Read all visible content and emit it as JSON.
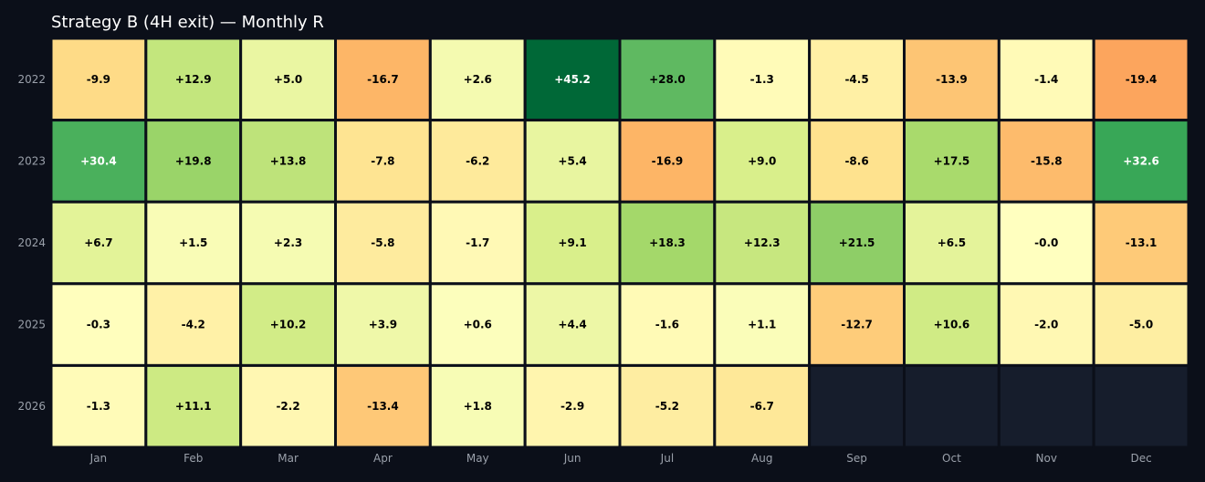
{
  "chart_data": {
    "type": "heatmap",
    "title": "Strategy B (4H exit) — Monthly R",
    "xlabel": "",
    "ylabel": "",
    "columns": [
      "Jan",
      "Feb",
      "Mar",
      "Apr",
      "May",
      "Jun",
      "Jul",
      "Aug",
      "Sep",
      "Oct",
      "Nov",
      "Dec"
    ],
    "rows": [
      "2022",
      "2023",
      "2024",
      "2025",
      "2026"
    ],
    "values": [
      [
        -9.9,
        12.9,
        5.0,
        -16.7,
        2.6,
        45.2,
        28.0,
        -1.3,
        -4.5,
        -13.9,
        -1.4,
        -19.4
      ],
      [
        30.4,
        19.8,
        13.8,
        -7.8,
        -6.2,
        5.4,
        -16.9,
        9.0,
        -8.6,
        17.5,
        -15.8,
        32.6
      ],
      [
        6.7,
        1.5,
        2.3,
        -5.8,
        -1.7,
        9.1,
        18.3,
        12.3,
        21.5,
        6.5,
        -0.0,
        -13.1
      ],
      [
        -0.3,
        -4.2,
        10.2,
        3.9,
        0.6,
        4.4,
        -1.6,
        1.1,
        -12.7,
        10.6,
        -2.0,
        -5.0
      ],
      [
        -1.3,
        11.1,
        -2.2,
        -13.4,
        1.8,
        -2.9,
        -5.2,
        -6.7,
        null,
        null,
        null,
        null
      ]
    ],
    "labels": [
      [
        "-9.9",
        "+12.9",
        "+5.0",
        "-16.7",
        "+2.6",
        "+45.2",
        "+28.0",
        "-1.3",
        "-4.5",
        "-13.9",
        "-1.4",
        "-19.4"
      ],
      [
        "+30.4",
        "+19.8",
        "+13.8",
        "-7.8",
        "-6.2",
        "+5.4",
        "-16.9",
        "+9.0",
        "-8.6",
        "+17.5",
        "-15.8",
        "+32.6"
      ],
      [
        "+6.7",
        "+1.5",
        "+2.3",
        "-5.8",
        "-1.7",
        "+9.1",
        "+18.3",
        "+12.3",
        "+21.5",
        "+6.5",
        "-0.0",
        "-13.1"
      ],
      [
        "-0.3",
        "-4.2",
        "+10.2",
        "+3.9",
        "+0.6",
        "+4.4",
        "-1.6",
        "+1.1",
        "-12.7",
        "+10.6",
        "-2.0",
        "-5.0"
      ],
      [
        "-1.3",
        "+11.1",
        "-2.2",
        "-13.4",
        "+1.8",
        "-2.9",
        "-5.2",
        "-6.7",
        "",
        "",
        "",
        ""
      ]
    ],
    "colormap": "RdYlGn",
    "color_range": [
      -45.2,
      45.2
    ],
    "grid": false,
    "legend": "none"
  },
  "colors": {
    "background": "#0b0f19",
    "empty_cell": "#161d2c",
    "cell_border": "#0b0f19",
    "tick_label": "#9aa0aa",
    "title": "#ffffff",
    "dark_text": "#000000",
    "light_text": "#ffffff"
  }
}
